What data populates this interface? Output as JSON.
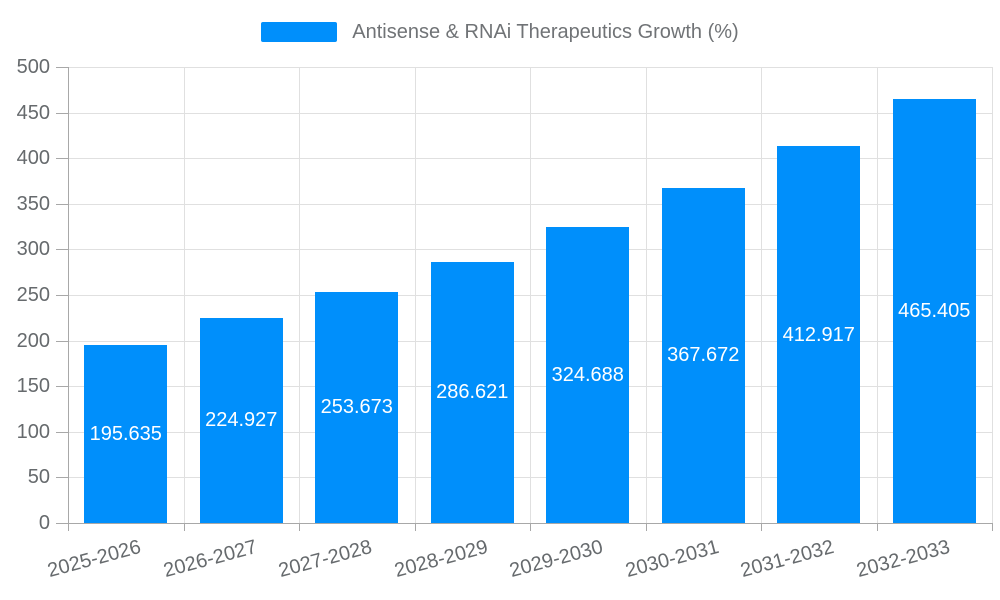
{
  "colors": {
    "bar": "#008FFB",
    "grid": "#e0e0e0",
    "axis": "#a8a8a8",
    "tick_label": "#666a6d",
    "value_label": "#ffffff",
    "legend_text": "#707376"
  },
  "chart_data": {
    "type": "bar",
    "title": "Antisense & RNAi Therapeutics Growth (%)",
    "legend": [
      "Antisense & RNAi Therapeutics Growth (%)"
    ],
    "legend_position": "top",
    "categories": [
      "2025-2026",
      "2026-2027",
      "2027-2028",
      "2028-2029",
      "2029-2030",
      "2030-2031",
      "2031-2032",
      "2032-2033"
    ],
    "values": [
      195.635,
      224.927,
      253.673,
      286.621,
      324.688,
      367.672,
      412.917,
      465.405
    ],
    "value_labels": [
      "195.635",
      "224.927",
      "253.673",
      "286.621",
      "324.688",
      "367.672",
      "412.917",
      "465.405"
    ],
    "xlabel": "",
    "ylabel": "",
    "ylim": [
      0,
      500
    ],
    "y_ticks": [
      0,
      50,
      100,
      150,
      200,
      250,
      300,
      350,
      400,
      450,
      500
    ],
    "grid": true,
    "x_label_rotation_deg": -15
  }
}
